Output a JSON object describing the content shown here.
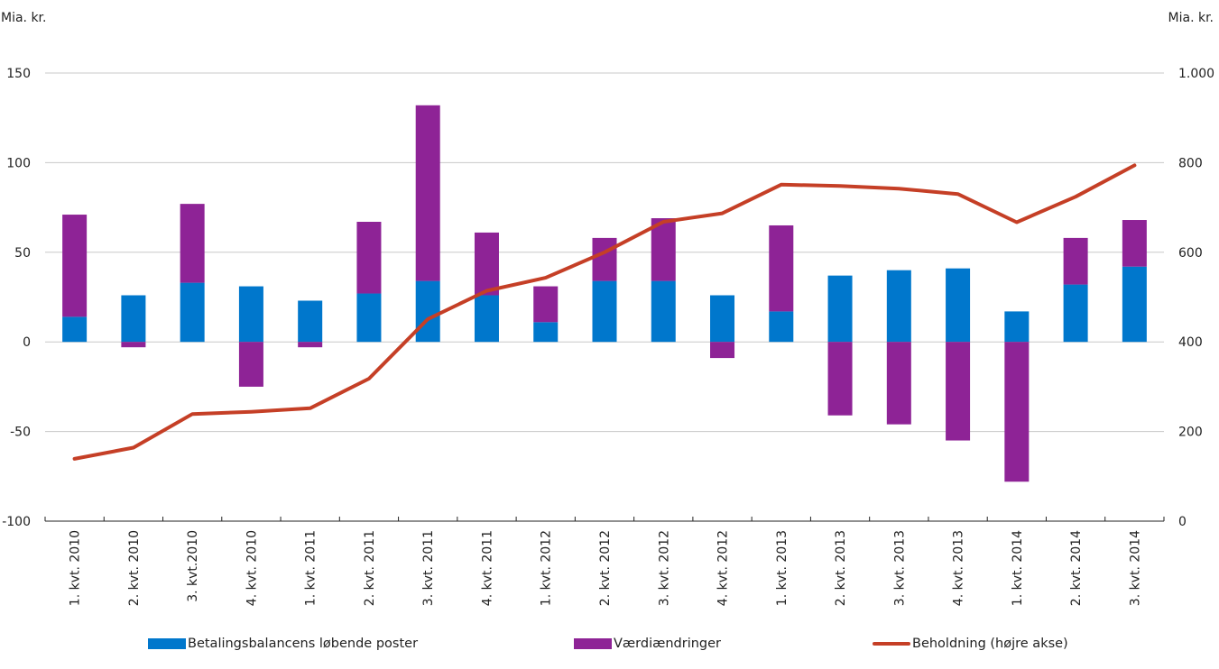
{
  "chart_data": {
    "type": "bar",
    "stacked": true,
    "left_axis": {
      "label": "Mia. kr.",
      "ylim": [
        -100,
        150
      ],
      "ticks": [
        -100,
        -50,
        0,
        50,
        100,
        150
      ],
      "tick_labels": [
        "-100",
        "-50",
        "0",
        "50",
        "100",
        "150"
      ]
    },
    "right_axis": {
      "label": "Mia. kr.",
      "ylim": [
        0,
        1000
      ],
      "ticks": [
        0,
        200,
        400,
        600,
        800,
        1000
      ],
      "tick_labels": [
        "0",
        "200",
        "400",
        "600",
        "800",
        "1.000"
      ]
    },
    "grid": true,
    "legend_position": "bottom",
    "categories": [
      "1. kvt. 2010",
      "2. kvt. 2010",
      "3. kvt.2010",
      "4. kvt. 2010",
      "1. kvt. 2011",
      "2. kvt. 2011",
      "3. kvt. 2011",
      "4. kvt. 2011",
      "1. kvt. 2012",
      "2. kvt. 2012",
      "3. kvt. 2012",
      "4. kvt. 2012",
      "1. kvt. 2013",
      "2. kvt. 2013",
      "3. kvt. 2013",
      "4. kvt. 2013",
      "1. kvt. 2014",
      "2. kvt. 2014",
      "3. kvt. 2014"
    ],
    "series": [
      {
        "name": "Betalingsbalancens løbende poster",
        "type": "bar",
        "axis": "left",
        "color": "#0077CC",
        "values": [
          14,
          26,
          33,
          31,
          23,
          27,
          34,
          26,
          11,
          34,
          34,
          26,
          17,
          37,
          40,
          41,
          17,
          32,
          42
        ]
      },
      {
        "name": "Værdiændringer",
        "type": "bar",
        "axis": "left",
        "color": "#8E2396",
        "values": [
          57,
          -3,
          44,
          -25,
          -3,
          40,
          98,
          35,
          20,
          24,
          35,
          -9,
          48,
          -41,
          -46,
          -55,
          -78,
          26,
          26
        ]
      },
      {
        "name": "Beholdning (højre akse)",
        "type": "line",
        "axis": "right",
        "color": "#C53F26",
        "values": [
          139,
          164,
          239,
          244,
          252,
          318,
          451,
          514,
          543,
          600,
          668,
          687,
          751,
          748,
          742,
          730,
          667,
          724,
          794
        ]
      }
    ]
  }
}
